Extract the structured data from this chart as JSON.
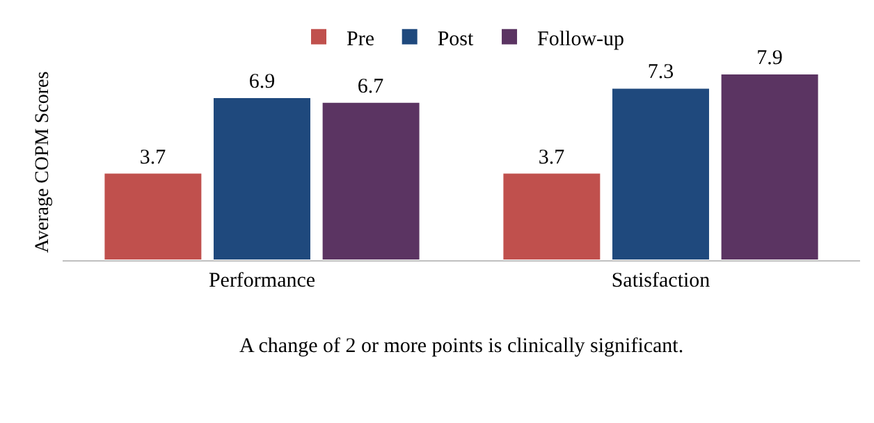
{
  "chart_data": {
    "type": "bar",
    "ylabel": "Average COPM Scores",
    "categories": [
      "Performance",
      "Satisfaction"
    ],
    "series": [
      {
        "name": "Pre",
        "color": "#c0504d",
        "values": [
          3.7,
          3.7
        ]
      },
      {
        "name": "Post",
        "color": "#1f497d",
        "values": [
          6.9,
          7.3
        ]
      },
      {
        "name": "Follow-up",
        "color": "#5b3462",
        "values": [
          6.7,
          7.9
        ]
      }
    ],
    "data_labels": true,
    "legend": "top",
    "grid": false,
    "annotations": [
      "A change of 2 or more points is clinically significant."
    ]
  }
}
